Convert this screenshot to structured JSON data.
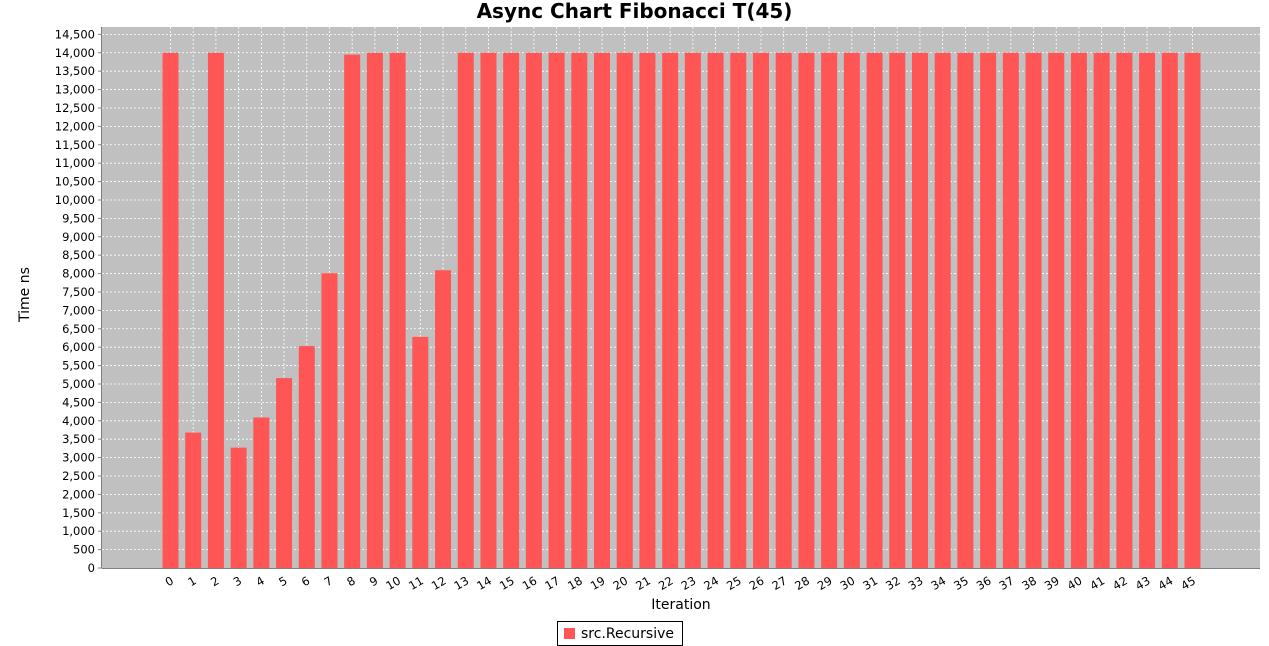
{
  "chart_data": {
    "type": "bar",
    "title": "Async Chart Fibonacci T(45)",
    "xlabel": "Iteration",
    "ylabel": "Time ns",
    "ylim": [
      0,
      14700
    ],
    "yticks": [
      0,
      500,
      1000,
      1500,
      2000,
      2500,
      3000,
      3500,
      4000,
      4500,
      5000,
      5500,
      6000,
      6500,
      7000,
      7500,
      8000,
      8500,
      9000,
      9500,
      10000,
      10500,
      11000,
      11500,
      12000,
      12500,
      13000,
      13500,
      14000,
      14500
    ],
    "ytick_labels": [
      "0",
      "500",
      "1,000",
      "1,500",
      "2,000",
      "2,500",
      "3,000",
      "3,500",
      "4,000",
      "4,500",
      "5,000",
      "5,500",
      "6,000",
      "6,500",
      "7,000",
      "7,500",
      "8,000",
      "8,500",
      "9,000",
      "9,500",
      "10,000",
      "10,500",
      "11,000",
      "11,500",
      "12,000",
      "12,500",
      "13,000",
      "13,500",
      "14,000",
      "14,500"
    ],
    "categories": [
      "0",
      "1",
      "2",
      "3",
      "4",
      "5",
      "6",
      "7",
      "8",
      "9",
      "10",
      "11",
      "12",
      "13",
      "14",
      "15",
      "16",
      "17",
      "18",
      "19",
      "20",
      "21",
      "22",
      "23",
      "24",
      "25",
      "26",
      "27",
      "28",
      "29",
      "30",
      "31",
      "32",
      "33",
      "34",
      "35",
      "36",
      "37",
      "38",
      "39",
      "40",
      "41",
      "42",
      "43",
      "44",
      "45"
    ],
    "series": [
      {
        "name": "src.Recursive",
        "color": "#ff5555",
        "values": [
          14000,
          3680,
          14000,
          3270,
          4090,
          5160,
          6030,
          8010,
          13950,
          14000,
          14000,
          6280,
          8090,
          14000,
          14000,
          14000,
          14000,
          14000,
          14000,
          14000,
          14000,
          14000,
          14000,
          14000,
          14000,
          14000,
          14000,
          14000,
          14000,
          14000,
          14000,
          14000,
          14000,
          14000,
          14000,
          14000,
          14000,
          14000,
          14000,
          14000,
          14000,
          14000,
          14000,
          14000,
          14000,
          14000
        ]
      }
    ],
    "grid": true,
    "legend_position": "bottom-center",
    "colors": {
      "plot_background": "#c0c0c0",
      "gridline": "#ffffff",
      "bar": "#ff5555"
    }
  }
}
